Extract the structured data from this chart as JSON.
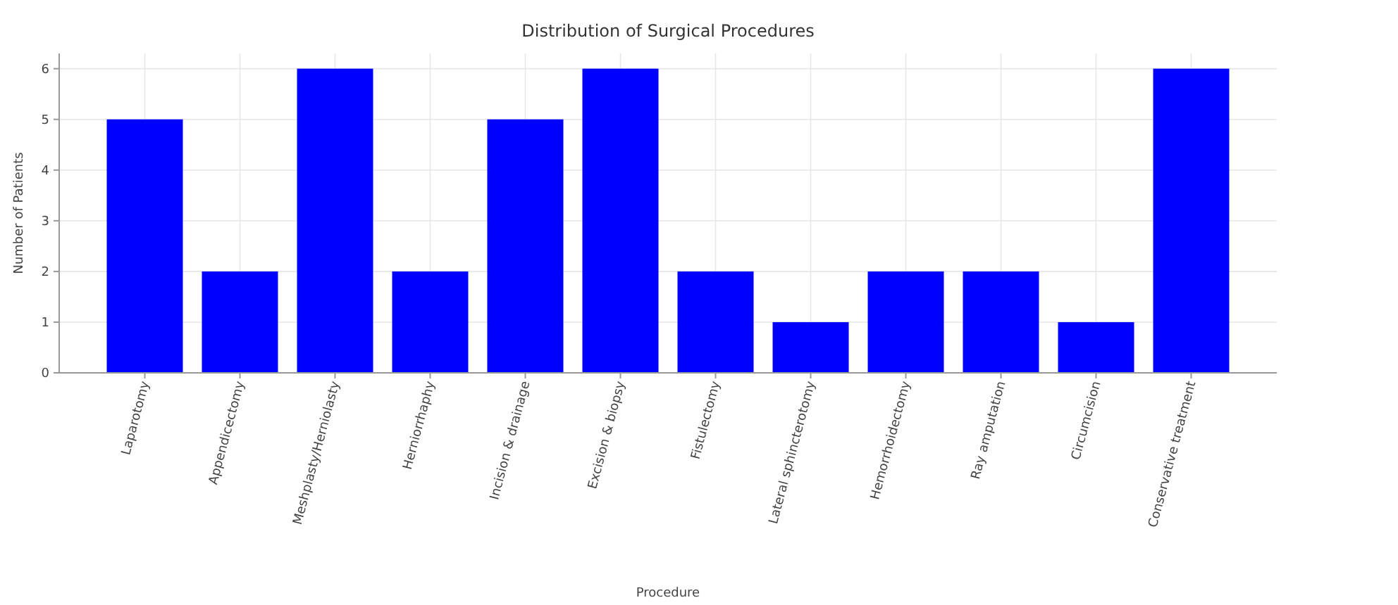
{
  "chart_data": {
    "type": "bar",
    "title": "Distribution of Surgical Procedures",
    "xlabel": "Procedure",
    "ylabel": "Number of Patients",
    "categories": [
      "Laparotomy",
      "Appendicectomy",
      "Meshplasty/Herniolasty",
      "Herniorrhaphy",
      "Incision & drainage",
      "Excision & biopsy",
      "Fistulectomy",
      "Lateral sphincterotomy",
      "Hemorrhoidectomy",
      "Ray amputation",
      "Circumcision",
      "Conservative treatment"
    ],
    "values": [
      5,
      2,
      6,
      2,
      5,
      6,
      2,
      1,
      2,
      2,
      1,
      6
    ],
    "color": "#0000ff",
    "ylim": [
      0,
      6.3
    ],
    "yticks": [
      0,
      1,
      2,
      3,
      4,
      5,
      6
    ],
    "grid": true
  }
}
